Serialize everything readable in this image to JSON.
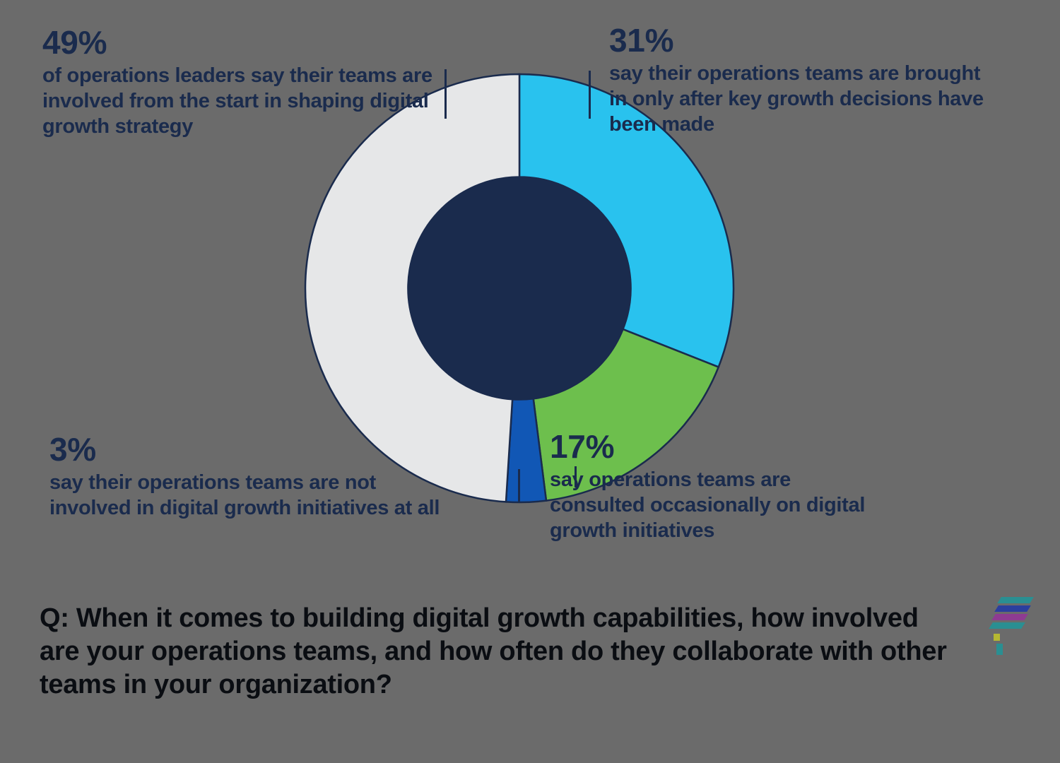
{
  "page": {
    "background_color": "#6b6b6b",
    "text_color_navy": "#1a2b4d",
    "text_color_dark": "#0a0d12"
  },
  "chart_data": {
    "type": "pie",
    "subtype": "donut",
    "title": "",
    "start_angle_deg": 0,
    "direction": "clockwise",
    "hole_ratio": 0.52,
    "hole_color": "#1a2b4d",
    "border_color": "#1a2b4d",
    "legend_position": "callouts-around-chart",
    "segments": [
      {
        "id": "cyan",
        "label": "31% — brought in only after key growth decisions have been made",
        "value": 31,
        "color": "#29c2ee"
      },
      {
        "id": "green",
        "label": "17% — consulted occasionally on digital growth initiatives",
        "value": 17,
        "color": "#6dbf4d"
      },
      {
        "id": "blue",
        "label": "3% — not involved in digital growth initiatives at all",
        "value": 3,
        "color": "#1157b5"
      },
      {
        "id": "gray",
        "label": "49% — involved from the start in shaping digital growth strategy",
        "value": 49,
        "color": "#e6e7e8"
      }
    ]
  },
  "callouts": {
    "top_left": {
      "percent": "49%",
      "text": "of operations leaders say their teams are involved from the start in shaping digital growth strategy"
    },
    "top_right": {
      "percent": "31%",
      "text": "say their operations teams are brought in only after key growth decisions have been made"
    },
    "bottom_left": {
      "percent": "3%",
      "text": "say their operations teams are not involved in digital growth initiatives at all"
    },
    "bottom_right": {
      "percent": "17%",
      "text": "say operations teams are consulted occasionally on digital growth initiatives"
    }
  },
  "question": {
    "text": "Q: When it comes to building digital growth capabilities, how involved are your operations teams, and how often do they collaborate with other teams in your organization?"
  },
  "logo": {
    "stripe_colors": [
      "#2a8f92",
      "#2b3f9e",
      "#8e3b92",
      "#2a8f92"
    ],
    "mark_colors": [
      "#b5b832",
      "#2a8f92"
    ]
  }
}
